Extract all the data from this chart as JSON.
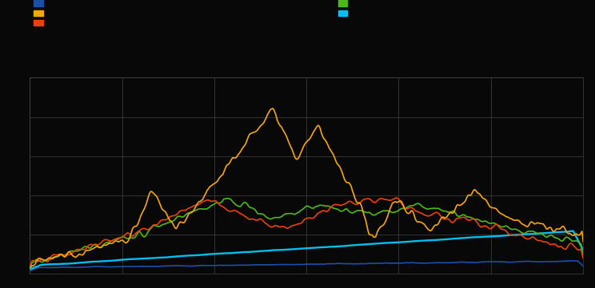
{
  "background_color": "#080808",
  "grid_color": "#444444",
  "colors": {
    "blue": "#1a4faa",
    "orange": "#f5a800",
    "red": "#e8420a",
    "green": "#4db81a",
    "cyan": "#00bfee"
  },
  "n_points": 500,
  "figsize": [
    7.44,
    3.61
  ],
  "dpi": 100
}
